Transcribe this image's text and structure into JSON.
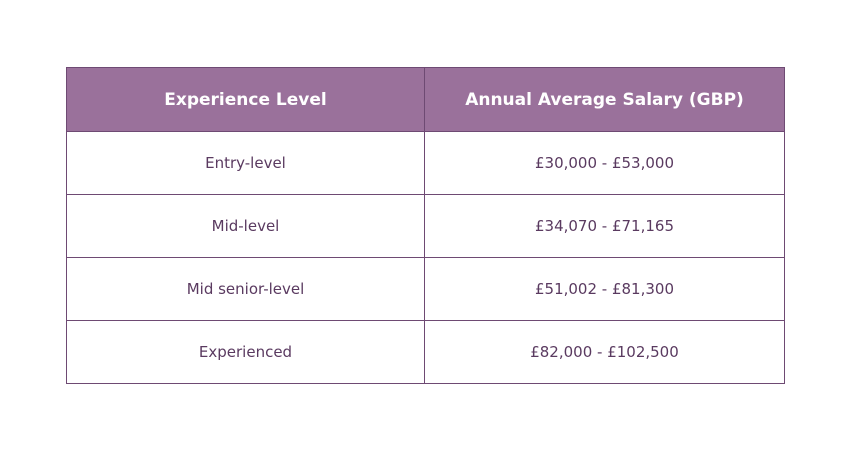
{
  "table": {
    "headers": [
      "Experience Level",
      "Annual Average Salary (GBP)"
    ],
    "rows": [
      [
        "Entry-level",
        "£30,000 - £53,000"
      ],
      [
        "Mid-level",
        "£34,070 - £71,165"
      ],
      [
        "Mid senior-level",
        "£51,002 - £81,300"
      ],
      [
        "Experienced",
        "£82,000 - £102,500"
      ]
    ]
  },
  "colors": {
    "header_bg": "#9a719b",
    "header_text": "#ffffff",
    "border": "#6e4a73",
    "cell_text": "#5a3a60"
  }
}
